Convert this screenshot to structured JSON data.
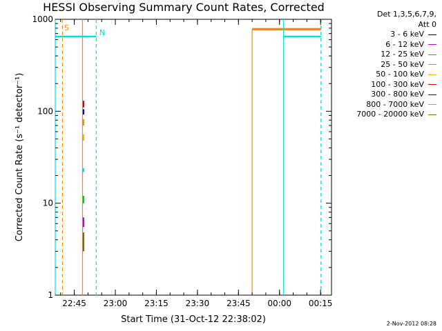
{
  "chart_data": {
    "type": "line",
    "title": "HESSI Observing Summary Count Rates, Corrected",
    "xlabel": "Start Time (31-Oct-12 22:38:02)",
    "ylabel": "Corrected Count Rate (s⁻¹ detector⁻¹)",
    "y_scale": "log",
    "ylim": [
      1,
      1000
    ],
    "y_ticks": [
      "1",
      "10",
      "100",
      "1000"
    ],
    "xlim": [
      "22:38:02",
      "00:19:00"
    ],
    "x_ticks": [
      {
        "t": "22:45",
        "label": "22:45"
      },
      {
        "t": "23:00",
        "label": "23:00"
      },
      {
        "t": "23:15",
        "label": "23:15"
      },
      {
        "t": "23:30",
        "label": "23:30"
      },
      {
        "t": "23:45",
        "label": "23:45"
      },
      {
        "t": "00:00",
        "label": "00:00"
      },
      {
        "t": "00:15",
        "label": "00:15"
      }
    ],
    "grid": false,
    "legend_header": [
      "Det 1,3,5,6,7,9,",
      "Att 0"
    ],
    "legend_position": "right",
    "series": [
      {
        "name": "3 - 6 keV",
        "color": "#000000",
        "points": [
          [
            "22:48:00",
            100
          ],
          [
            "22:48:00",
            105
          ]
        ]
      },
      {
        "name": "6 - 12 keV",
        "color": "#cc00cc",
        "points": [
          [
            "22:48:00",
            5.5
          ],
          [
            "22:48:00",
            7.0
          ]
        ]
      },
      {
        "name": "12 - 25 keV",
        "color": "#00cc00",
        "points": [
          [
            "22:48:00",
            10
          ],
          [
            "22:48:00",
            12
          ]
        ]
      },
      {
        "name": "25 - 50 keV",
        "color": "#00e0e0",
        "points": [
          [
            "22:48:00",
            22
          ],
          [
            "22:48:00",
            24
          ]
        ]
      },
      {
        "name": "50 - 100 keV",
        "color": "#e6b800",
        "points": [
          [
            "22:48:00",
            48
          ],
          [
            "22:48:00",
            56
          ]
        ]
      },
      {
        "name": "100 - 300 keV",
        "color": "#dd0000",
        "points": [
          [
            "22:48:00",
            110
          ],
          [
            "22:48:00",
            130
          ]
        ]
      },
      {
        "name": "300 - 800 keV",
        "color": "#0000cc",
        "points": [
          [
            "22:48:00",
            92
          ],
          [
            "22:48:00",
            102
          ]
        ]
      },
      {
        "name": "800 - 7000 keV",
        "color": "#ff8800",
        "points": [
          [
            "22:48:00",
            70
          ],
          [
            "22:48:00",
            82
          ]
        ]
      },
      {
        "name": "7000 - 20000 keV",
        "color": "#886600",
        "points": [
          [
            "22:48:00",
            3
          ],
          [
            "22:48:00",
            4.8
          ]
        ]
      }
    ],
    "intervals": [
      {
        "what": "S",
        "color": "#ff8800",
        "style": "dashed",
        "x": "22:40:40",
        "y": 800
      },
      {
        "what": "N",
        "color": "#00e0e0",
        "style": "dashed",
        "x": "22:53:00",
        "y": 650
      },
      {
        "what": "",
        "color": "#00e0e0",
        "style": "solid",
        "x": "22:38:02",
        "y": 650,
        "x_end": "22:53:00"
      },
      {
        "what": "",
        "color": "#ff8800",
        "style": "solid",
        "x": "22:48:00",
        "y": 0
      },
      {
        "what": "",
        "color": "#ff8800",
        "style": "solid",
        "x": "23:50:00",
        "y": 780,
        "x_end": "00:15:10"
      },
      {
        "what": "",
        "color": "#00e0e0",
        "style": "solid",
        "x": "00:01:30",
        "y": 650,
        "x_end": "00:15:10"
      },
      {
        "what": "",
        "color": "#ff8800",
        "style": "dashed",
        "x": "00:15:10",
        "y": 0
      },
      {
        "what": "",
        "color": "#00e0e0",
        "style": "dashed",
        "x": "00:15:10",
        "y": 0
      }
    ]
  },
  "legend": {
    "header_line1": "Det 1,3,5,6,7,9,",
    "header_line2": "Att 0"
  },
  "footer": {
    "date": "2-Nov-2012 08:28"
  },
  "labels": {
    "s_label": "S",
    "n_label": "N"
  }
}
